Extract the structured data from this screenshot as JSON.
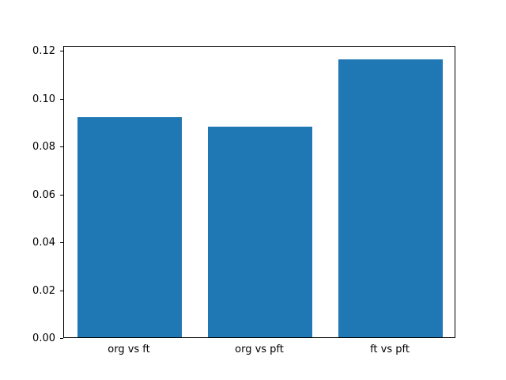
{
  "chart_data": {
    "type": "bar",
    "title": "",
    "xlabel": "",
    "ylabel": "",
    "categories": [
      "org vs ft",
      "org vs pft",
      "ft vs pft"
    ],
    "values": [
      0.092,
      0.088,
      0.116
    ],
    "ylim": [
      0,
      0.122
    ],
    "yticks": [
      0.0,
      0.02,
      0.04,
      0.06,
      0.08,
      0.1,
      0.12
    ],
    "ytick_format_decimals": 2,
    "bar_color": "#1f77b4",
    "grid": false,
    "legend": "none"
  }
}
